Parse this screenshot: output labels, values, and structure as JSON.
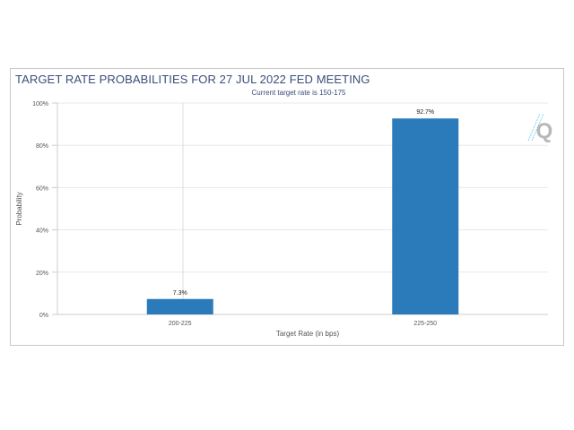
{
  "chart_data": {
    "type": "bar",
    "title": "TARGET RATE PROBABILITIES FOR 27 JUL 2022 FED MEETING",
    "subtitle": "Current target rate is 150-175",
    "xlabel": "Target Rate (in bps)",
    "ylabel": "Probability",
    "categories": [
      "200-225",
      "225-250"
    ],
    "values": [
      7.3,
      92.7
    ],
    "data_labels": [
      "7.3%",
      "92.7%"
    ],
    "ylim": [
      0,
      100
    ],
    "yticks": [
      0,
      20,
      40,
      60,
      80,
      100
    ],
    "ytick_labels": [
      "0%",
      "20%",
      "40%",
      "60%",
      "80%",
      "100%"
    ],
    "grid": true,
    "bar_color": "#2b7bba",
    "title_color": "#3a4d7a"
  },
  "watermark": "Q"
}
